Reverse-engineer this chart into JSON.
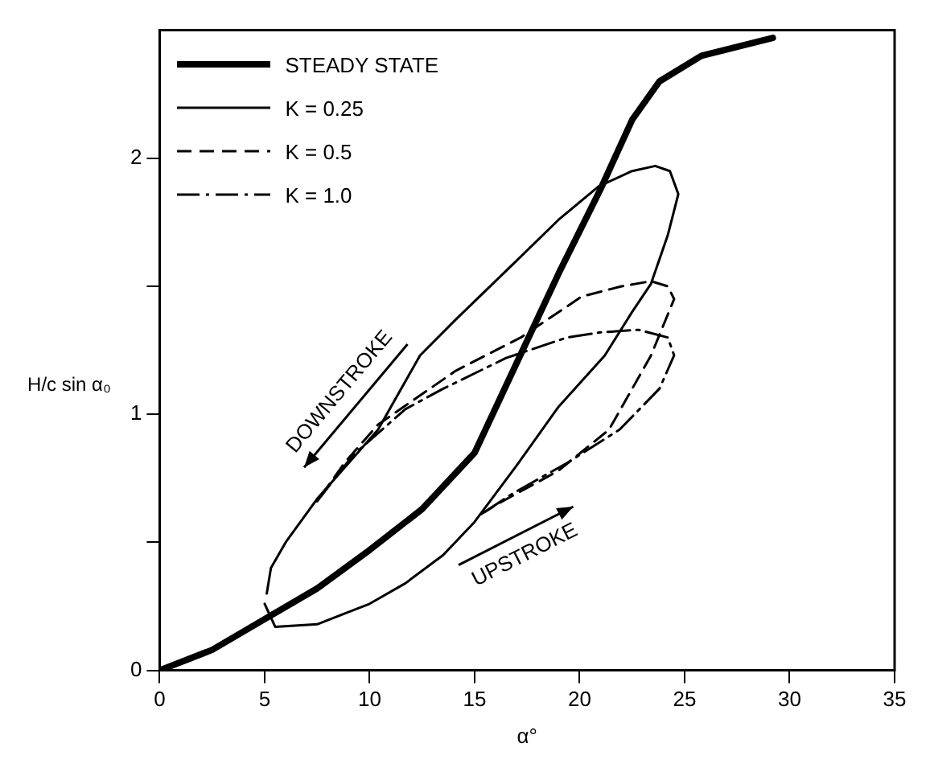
{
  "chart_data": {
    "type": "line",
    "xlabel": "α°",
    "ylabel": "H/c sin α₀",
    "xlim": [
      0,
      35
    ],
    "ylim": [
      0,
      2.5
    ],
    "xticks": [
      0,
      5,
      10,
      15,
      20,
      25,
      30,
      35
    ],
    "yticks": [
      0,
      {
        "value": 0.5,
        "label": null
      },
      1,
      {
        "value": 1.5,
        "label": null
      },
      2
    ],
    "grid": false,
    "legend": "top left",
    "marker": "none",
    "series": [
      {
        "name": "STEADY STATE",
        "color": "#000000",
        "line_style": "solid",
        "x": [
          0,
          2.5,
          5,
          7.5,
          10,
          12.5,
          15,
          17,
          19,
          21,
          22.5,
          23.8,
          25.8,
          29.2
        ],
        "values": [
          0,
          0.08,
          0.2,
          0.32,
          0.47,
          0.63,
          0.85,
          1.2,
          1.55,
          1.88,
          2.15,
          2.3,
          2.4,
          2.47
        ]
      },
      {
        "name": "K = 0.25",
        "color": "#000000",
        "line_style": "solid",
        "x": [
          5.0,
          5.5,
          7.5,
          10,
          11.7,
          13.5,
          15,
          17,
          19,
          21.2,
          22.5,
          23.4,
          24.2,
          24.7,
          24.3,
          23.6,
          22.5,
          20.9,
          19,
          17,
          14.1,
          12.4,
          10.4,
          7.5,
          6,
          5.3,
          5.1
        ],
        "values": [
          0.26,
          0.17,
          0.18,
          0.26,
          0.34,
          0.45,
          0.58,
          0.8,
          1.03,
          1.23,
          1.4,
          1.51,
          1.7,
          1.86,
          1.95,
          1.97,
          1.95,
          1.89,
          1.76,
          1.6,
          1.37,
          1.23,
          0.94,
          0.67,
          0.5,
          0.4,
          0.3
        ]
      },
      {
        "name": "K = 0.5",
        "color": "#000000",
        "line_style": "dashed",
        "x": [
          15.3,
          16.1,
          19,
          21.4,
          23.4,
          23.9,
          24.5,
          24.2,
          23.4,
          22,
          20.1,
          17.2,
          14.1,
          10.4,
          8.8,
          7.5
        ],
        "values": [
          0.61,
          0.65,
          0.78,
          0.94,
          1.23,
          1.33,
          1.45,
          1.5,
          1.52,
          1.5,
          1.46,
          1.3,
          1.17,
          0.96,
          0.81,
          0.66
        ]
      },
      {
        "name": "K = 1.0",
        "color": "#000000",
        "line_style": "dashdot",
        "x": [
          15.5,
          16.8,
          19.4,
          21.9,
          23.8,
          24.5,
          24.2,
          22.8,
          21,
          19.4,
          16.5,
          13.5,
          11.7,
          9.2,
          7.5
        ],
        "values": [
          0.62,
          0.69,
          0.81,
          0.94,
          1.1,
          1.23,
          1.3,
          1.33,
          1.32,
          1.3,
          1.22,
          1.1,
          1.02,
          0.84,
          0.66
        ]
      }
    ],
    "annotations": [
      "DOWNSTROKE",
      "UPSTROKE"
    ]
  }
}
